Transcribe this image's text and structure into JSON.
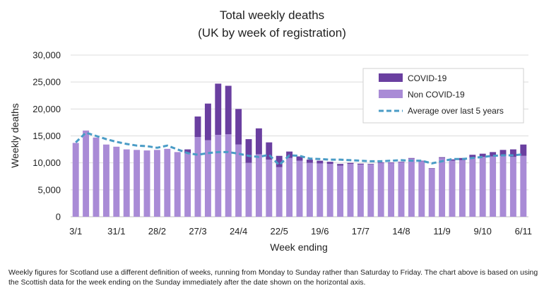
{
  "chart_data": {
    "type": "bar",
    "title": "Total weekly deaths",
    "subtitle": "(UK by week of registration)",
    "xlabel": "Week ending",
    "ylabel": "Weekly deaths",
    "ylim": [
      0,
      30000
    ],
    "yticks": [
      0,
      5000,
      10000,
      15000,
      20000,
      25000,
      30000
    ],
    "ytick_labels": [
      "0",
      "5,000",
      "10,000",
      "15,000",
      "20,000",
      "25,000",
      "30,000"
    ],
    "x_tick_labels": [
      {
        "index": 0,
        "label": "3/1"
      },
      {
        "index": 4,
        "label": "31/1"
      },
      {
        "index": 8,
        "label": "28/2"
      },
      {
        "index": 12,
        "label": "27/3"
      },
      {
        "index": 16,
        "label": "24/4"
      },
      {
        "index": 20,
        "label": "22/5"
      },
      {
        "index": 24,
        "label": "19/6"
      },
      {
        "index": 28,
        "label": "17/7"
      },
      {
        "index": 32,
        "label": "14/8"
      },
      {
        "index": 36,
        "label": "11/9"
      },
      {
        "index": 40,
        "label": "9/10"
      },
      {
        "index": 44,
        "label": "6/11"
      }
    ],
    "stacked": true,
    "grid": true,
    "legend_position": "top-right",
    "series": [
      {
        "name": "Non COVID-19",
        "color": "#a98bd6",
        "values": [
          13700,
          16000,
          14700,
          13400,
          13000,
          12500,
          12400,
          12300,
          12400,
          12600,
          12000,
          11800,
          14800,
          14200,
          15200,
          15300,
          13400,
          10000,
          11600,
          10600,
          9200,
          10900,
          10400,
          10000,
          9900,
          9800,
          9500,
          9800,
          9700,
          9700,
          10000,
          10000,
          10100,
          10800,
          10300,
          8900,
          10900,
          10400,
          10500,
          11000,
          11100,
          11200,
          11300,
          11100,
          11300
        ]
      },
      {
        "name": "COVID-19",
        "color": "#6a3fa0",
        "values": [
          0,
          0,
          0,
          0,
          0,
          0,
          0,
          0,
          0,
          0,
          0,
          700,
          3800,
          6800,
          9500,
          9000,
          6600,
          4400,
          4800,
          3200,
          2100,
          1200,
          800,
          600,
          500,
          400,
          300,
          200,
          150,
          100,
          100,
          100,
          100,
          100,
          100,
          100,
          150,
          250,
          400,
          500,
          600,
          800,
          1100,
          1400,
          2100
        ]
      }
    ],
    "average_line": {
      "name": "Average over last 5 years",
      "color": "#4a9cc6",
      "values": [
        13800,
        15600,
        15000,
        14400,
        13900,
        13500,
        13200,
        13100,
        12800,
        13200,
        12500,
        11800,
        11500,
        11800,
        12000,
        12000,
        11700,
        11300,
        11100,
        11500,
        9600,
        11400,
        11300,
        10800,
        10700,
        10600,
        10600,
        10500,
        10400,
        10300,
        10300,
        10400,
        10500,
        10400,
        10400,
        9900,
        10300,
        10700,
        10700,
        10900,
        11100,
        11300,
        11400,
        11400,
        11600
      ]
    }
  },
  "footnote": {
    "line1": "Weekly figures for Scotland use a different definition of weeks, running from Monday to Sunday rather than Saturday to Friday. The chart above is based on using",
    "line2": "the Scottish data for the week ending on the Sunday immediately after the date shown on the horizontal axis."
  }
}
